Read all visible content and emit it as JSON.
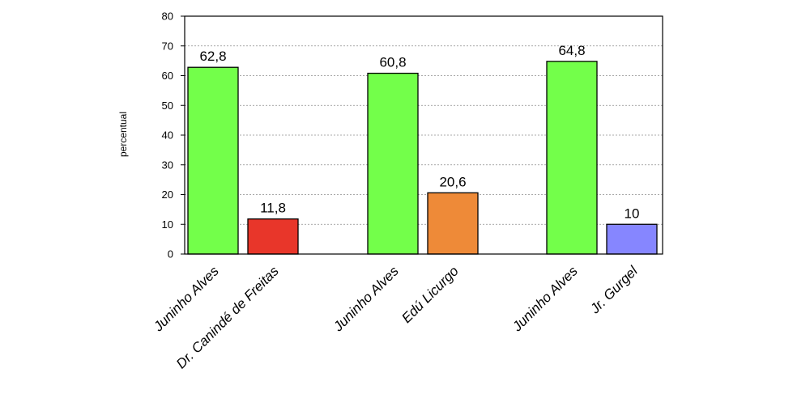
{
  "chart_data": {
    "type": "bar",
    "ylabel": "percentual",
    "xlabel": "",
    "ylim": [
      0,
      80
    ],
    "yticks": [
      0,
      10,
      20,
      30,
      40,
      50,
      60,
      70,
      80
    ],
    "grid": true,
    "legend": "none",
    "bars": [
      {
        "label": "Juninho Alves",
        "value": 62.8,
        "value_label": "62,8",
        "color": "#73ff4a"
      },
      {
        "label": "Dr. Canindé de Freitas",
        "value": 11.8,
        "value_label": "11,8",
        "color": "#e8362a"
      },
      {
        "label": "Juninho Alves",
        "value": 60.8,
        "value_label": "60,8",
        "color": "#73ff4a"
      },
      {
        "label": "Edú Licurgo",
        "value": 20.6,
        "value_label": "20,6",
        "color": "#ee8a38"
      },
      {
        "label": "Juninho Alves",
        "value": 64.8,
        "value_label": "64,8",
        "color": "#73ff4a"
      },
      {
        "label": "Jr. Gurgel",
        "value": 10,
        "value_label": "10",
        "color": "#8686ff"
      }
    ]
  }
}
